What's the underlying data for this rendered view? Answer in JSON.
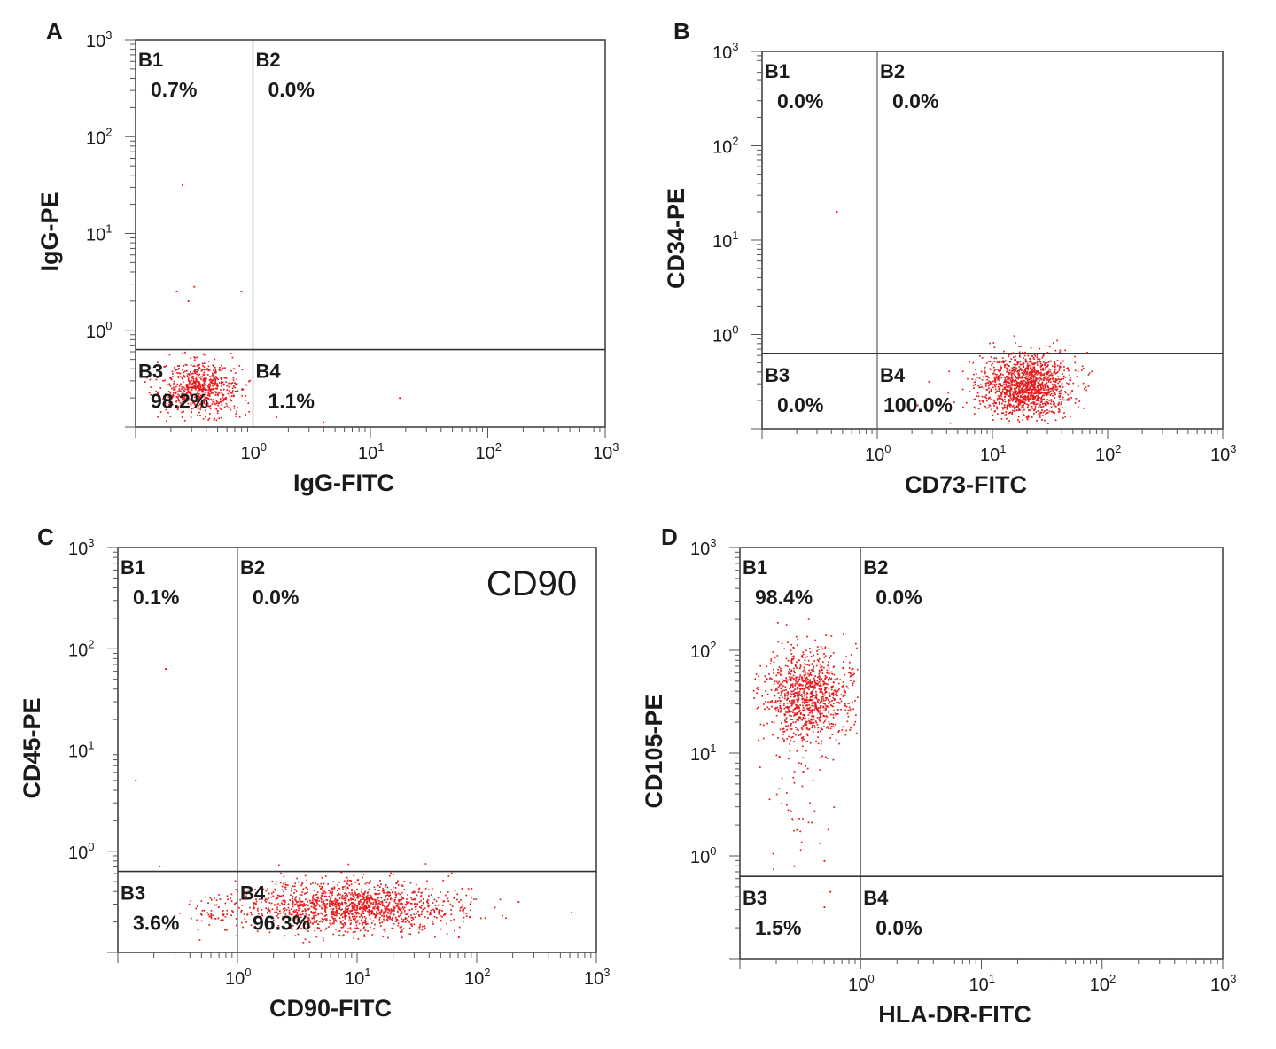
{
  "figure": {
    "dot_color": "#e8191c",
    "text_color": "#1a1a1a",
    "axis_color": "#444444"
  },
  "chart_data": [
    {
      "panel": "A",
      "type": "scatter",
      "xlabel": "IgG-FITC",
      "ylabel": "IgG-PE",
      "scale": "log",
      "xlim_log10": [
        -1.0,
        3.0
      ],
      "ylim_log10": [
        -1.0,
        3.0
      ],
      "x_ticks": [
        {
          "main": "10",
          "exp": "0"
        },
        {
          "main": "10",
          "exp": "1"
        },
        {
          "main": "10",
          "exp": "2"
        },
        {
          "main": "10",
          "exp": "3"
        }
      ],
      "y_ticks": [
        {
          "main": "10",
          "exp": "0"
        },
        {
          "main": "10",
          "exp": "1"
        },
        {
          "main": "10",
          "exp": "2"
        },
        {
          "main": "10",
          "exp": "3"
        }
      ],
      "gate_log10": {
        "x": 0.0,
        "y": -0.2
      },
      "quadrants": [
        {
          "id": "B1",
          "label": "B1",
          "value": "0.7%"
        },
        {
          "id": "B2",
          "label": "B2",
          "value": "0.0%"
        },
        {
          "id": "B3",
          "label": "B3",
          "value": "98.2%"
        },
        {
          "id": "B4",
          "label": "B4",
          "value": "1.1%"
        }
      ],
      "clusters": [
        {
          "cx": -0.45,
          "cy": -0.6,
          "sx": 0.17,
          "sy": 0.15,
          "n": 700,
          "xmax": -0.02,
          "ymax": -0.22
        }
      ],
      "outliers": [
        [
          -0.6,
          1.5
        ],
        [
          -0.65,
          0.4
        ],
        [
          -0.5,
          0.45
        ],
        [
          -0.1,
          0.4
        ],
        [
          -0.55,
          0.3
        ],
        [
          0.2,
          -0.9
        ],
        [
          1.25,
          -0.7
        ],
        [
          0.6,
          -0.95
        ]
      ]
    },
    {
      "panel": "B",
      "type": "scatter",
      "xlabel": "CD73-FITC",
      "ylabel": "CD34-PE",
      "scale": "log",
      "xlim_log10": [
        -1.0,
        3.0
      ],
      "ylim_log10": [
        -1.0,
        3.0
      ],
      "x_ticks": [
        {
          "main": "10",
          "exp": "0"
        },
        {
          "main": "10",
          "exp": "1"
        },
        {
          "main": "10",
          "exp": "2"
        },
        {
          "main": "10",
          "exp": "3"
        }
      ],
      "y_ticks": [
        {
          "main": "10",
          "exp": "0"
        },
        {
          "main": "10",
          "exp": "1"
        },
        {
          "main": "10",
          "exp": "2"
        },
        {
          "main": "10",
          "exp": "3"
        }
      ],
      "gate_log10": {
        "x": 0.0,
        "y": -0.2
      },
      "quadrants": [
        {
          "id": "B1",
          "label": "B1",
          "value": "0.0%"
        },
        {
          "id": "B2",
          "label": "B2",
          "value": "0.0%"
        },
        {
          "id": "B3",
          "label": "B3",
          "value": "0.0%"
        },
        {
          "id": "B4",
          "label": "B4",
          "value": "100.0%"
        }
      ],
      "clusters": [
        {
          "cx": 1.28,
          "cy": -0.55,
          "sx": 0.2,
          "sy": 0.17,
          "n": 1400
        }
      ],
      "outliers": [
        [
          -0.35,
          1.3
        ],
        [
          0.45,
          -0.5
        ],
        [
          0.35,
          -0.75
        ]
      ]
    },
    {
      "panel": "C",
      "type": "scatter",
      "xlabel": "CD90-FITC",
      "ylabel": "CD45-PE",
      "scale": "log",
      "xlim_log10": [
        -1.0,
        3.0
      ],
      "ylim_log10": [
        -1.0,
        3.0
      ],
      "x_ticks": [
        {
          "main": "10",
          "exp": "0"
        },
        {
          "main": "10",
          "exp": "1"
        },
        {
          "main": "10",
          "exp": "2"
        },
        {
          "main": "10",
          "exp": "3"
        }
      ],
      "y_ticks": [
        {
          "main": "10",
          "exp": "0"
        },
        {
          "main": "10",
          "exp": "1"
        },
        {
          "main": "10",
          "exp": "2"
        },
        {
          "main": "10",
          "exp": "3"
        }
      ],
      "gate_log10": {
        "x": 0.0,
        "y": -0.2
      },
      "annotation": "CD90",
      "quadrants": [
        {
          "id": "B1",
          "label": "B1",
          "value": "0.1%"
        },
        {
          "id": "B2",
          "label": "B2",
          "value": "0.0%"
        },
        {
          "id": "B3",
          "label": "B3",
          "value": "3.6%"
        },
        {
          "id": "B4",
          "label": "B4",
          "value": "96.3%"
        }
      ],
      "clusters": [
        {
          "cx": 0.95,
          "cy": -0.55,
          "sx": 0.45,
          "sy": 0.13,
          "n": 1400
        },
        {
          "cx": -0.2,
          "cy": -0.6,
          "sx": 0.12,
          "sy": 0.1,
          "n": 50
        }
      ],
      "outliers": [
        [
          -0.6,
          1.8
        ],
        [
          -0.85,
          0.7
        ],
        [
          -0.65,
          -0.15
        ],
        [
          2.35,
          -0.5
        ],
        [
          1.85,
          -0.85
        ]
      ]
    },
    {
      "panel": "D",
      "type": "scatter",
      "xlabel": "HLA-DR-FITC",
      "ylabel": "CD105-PE",
      "scale": "log",
      "xlim_log10": [
        -1.0,
        3.0
      ],
      "ylim_log10": [
        -1.0,
        3.0
      ],
      "x_ticks": [
        {
          "main": "10",
          "exp": "0"
        },
        {
          "main": "10",
          "exp": "1"
        },
        {
          "main": "10",
          "exp": "2"
        },
        {
          "main": "10",
          "exp": "3"
        }
      ],
      "y_ticks": [
        {
          "main": "10",
          "exp": "0"
        },
        {
          "main": "10",
          "exp": "1"
        },
        {
          "main": "10",
          "exp": "2"
        },
        {
          "main": "10",
          "exp": "3"
        }
      ],
      "gate_log10": {
        "x": 0.0,
        "y": -0.2
      },
      "quadrants": [
        {
          "id": "B1",
          "label": "B1",
          "value": "98.4%"
        },
        {
          "id": "B2",
          "label": "B2",
          "value": "0.0%"
        },
        {
          "id": "B3",
          "label": "B3",
          "value": "1.5%"
        },
        {
          "id": "B4",
          "label": "B4",
          "value": "0.0%"
        }
      ],
      "clusters": [
        {
          "cx": -0.45,
          "cy": 1.55,
          "sx": 0.18,
          "sy": 0.22,
          "n": 1000,
          "xmax": -0.02
        },
        {
          "cx": -0.5,
          "cy": 0.65,
          "sx": 0.15,
          "sy": 0.35,
          "n": 50,
          "xmax": -0.02
        }
      ],
      "outliers": [
        [
          -0.55,
          -0.1
        ],
        [
          -0.3,
          -0.05
        ],
        [
          -0.25,
          -0.35
        ],
        [
          -0.3,
          -0.5
        ]
      ]
    }
  ]
}
